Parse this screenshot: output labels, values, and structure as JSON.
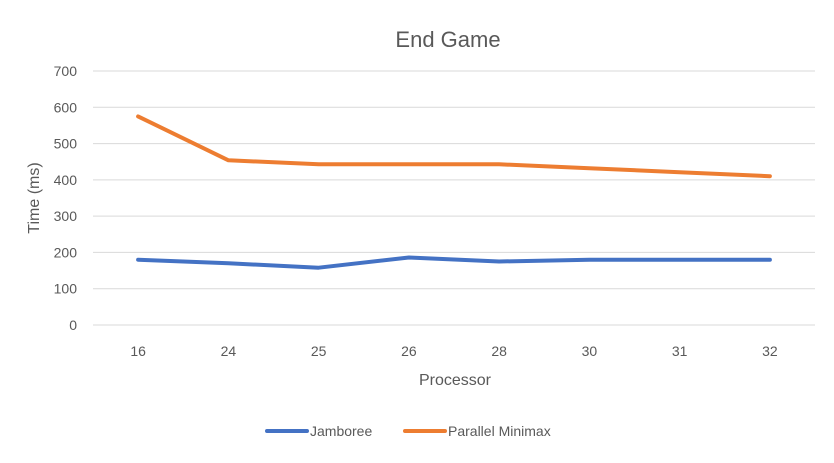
{
  "chart_data": {
    "type": "line",
    "title": "End Game",
    "xlabel": "Processor",
    "ylabel": "Time (ms)",
    "categories": [
      "16",
      "24",
      "25",
      "26",
      "28",
      "30",
      "31",
      "32"
    ],
    "ylim": [
      0,
      700
    ],
    "yticks": [
      0,
      100,
      200,
      300,
      400,
      500,
      600,
      700
    ],
    "grid": true,
    "legend_position": "bottom",
    "series": [
      {
        "name": "Jamboree",
        "color": "#4472C4",
        "values": [
          180,
          170,
          158,
          186,
          175,
          180,
          180,
          180
        ]
      },
      {
        "name": "Parallel Minimax",
        "color": "#ED7D31",
        "values": [
          575,
          454,
          443,
          443,
          443,
          432,
          421,
          410
        ]
      }
    ]
  }
}
